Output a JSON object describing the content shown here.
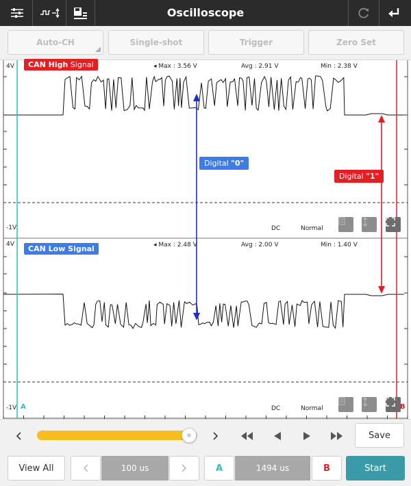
{
  "header": {
    "title": "Oscilloscope",
    "left_icons": [
      "settings-sliders-icon",
      "waveform-icon",
      "save-list-icon"
    ],
    "right_icons": [
      "refresh-icon",
      "return-icon"
    ]
  },
  "modes": {
    "auto_ch": "Auto-CH",
    "single_shot": "Single-shot",
    "trigger": "Trigger",
    "zero_set": "Zero Set"
  },
  "channels": [
    {
      "label_main": "CAN High",
      "label_rest": " Signal",
      "color": "#e31f26",
      "max": "Max : 3.56 V",
      "avg": "Avg : 2.91 V",
      "min": "Min : 2.38 V",
      "top_label": "4V",
      "bottom_label": "-1V",
      "coupling": "DC",
      "mode": "Normal"
    },
    {
      "label_main": "CAN Low Signal",
      "label_rest": "",
      "color": "#3d7be6",
      "max": "Max : 2.48 V",
      "avg": "Avg : 2.00 V",
      "min": "Min : 1.40 V",
      "top_label": "4V",
      "bottom_label": "-1V",
      "coupling": "DC",
      "mode": "Normal"
    }
  ],
  "annotations": {
    "digital_0_prefix": "Digital ",
    "digital_0_value": "\"0\"",
    "digital_1_prefix": "Digital ",
    "digital_1_value": "\"1\"",
    "blue": "#1a2fd1",
    "red": "#e31f26"
  },
  "cursors": {
    "a_label": "A",
    "b_label": "B",
    "a_color": "#2bbfc4",
    "b_color": "#e31f26"
  },
  "controls": {
    "save": "Save",
    "view_all": "View All",
    "time_div": "100 us",
    "cursor_a_btn": "A",
    "cursor_delta": "1494 us",
    "cursor_b_btn": "B",
    "start": "Start",
    "slider_fraction": 0.95
  }
}
